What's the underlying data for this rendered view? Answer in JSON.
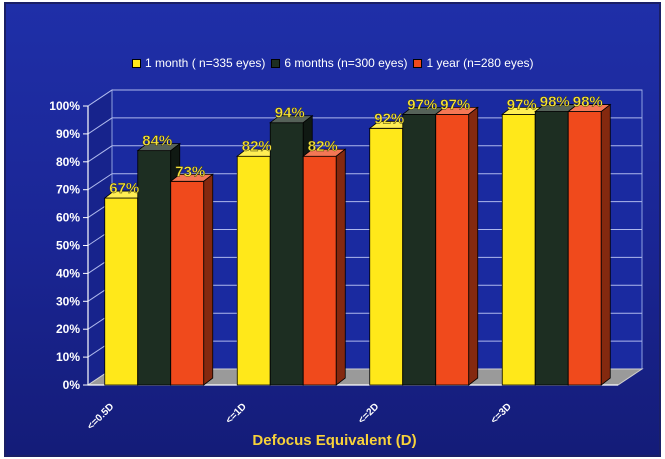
{
  "chart_data": {
    "type": "bar",
    "title": "",
    "xlabel": "Defocus Equivalent  (D)",
    "ylabel": "",
    "ylim": [
      0,
      100
    ],
    "ytick_suffix": "%",
    "categories": [
      "<=0.5D",
      "<=1D",
      "<=2D",
      "<=3D"
    ],
    "series": [
      {
        "name": "1 month ( n=335 eyes)",
        "color": "#ffe81a",
        "values": [
          67,
          82,
          92,
          97
        ]
      },
      {
        "name": "6 months (n=300 eyes)",
        "color": "#1d2e22",
        "values": [
          84,
          94,
          97,
          98
        ]
      },
      {
        "name": "1 year (n=280 eyes)",
        "color": "#f04a1c",
        "values": [
          73,
          82,
          97,
          98
        ]
      }
    ],
    "data_labels": true,
    "grid": true,
    "legend_position": "top",
    "style": "3d"
  }
}
